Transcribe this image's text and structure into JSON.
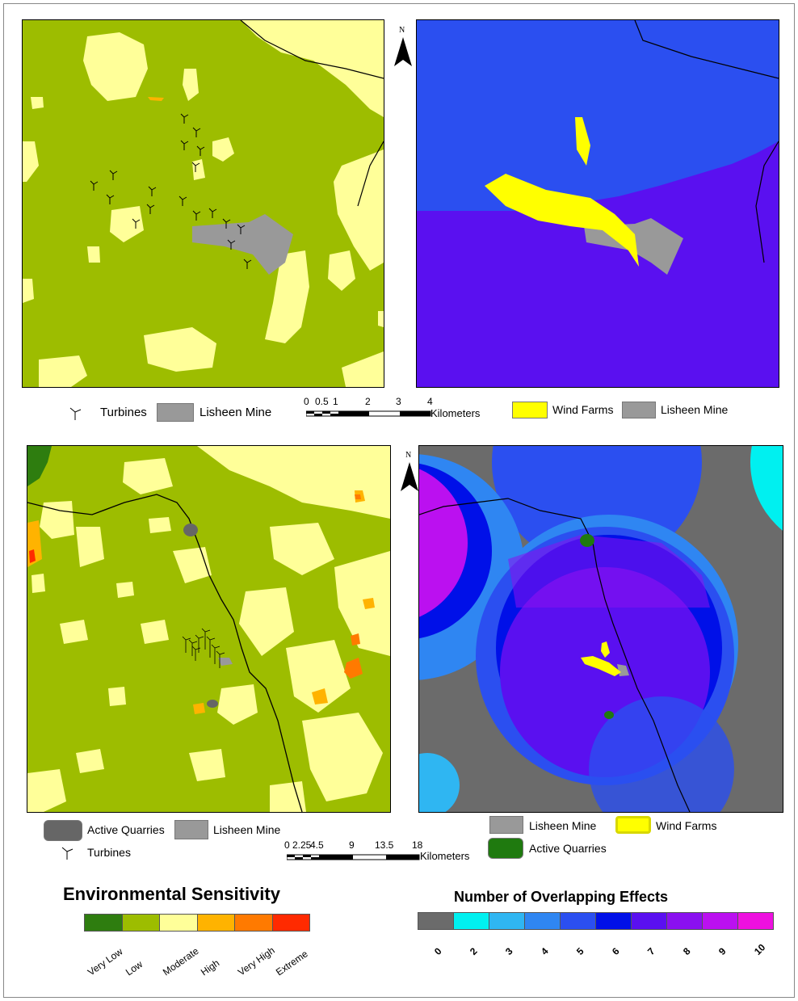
{
  "north_label": "N",
  "scale_top": {
    "ticks": [
      "0",
      "0.5",
      "1",
      "2",
      "3",
      "4"
    ],
    "unit": "Kilometers"
  },
  "scale_bottom": {
    "ticks": [
      "0",
      "2.25",
      "4.5",
      "9",
      "13.5",
      "18"
    ],
    "unit": "Kilometers"
  },
  "legend_top_left": {
    "turbines": "Turbines",
    "lisheen_mine": "Lisheen Mine"
  },
  "legend_top_right": {
    "wind_farms": "Wind Farms",
    "lisheen_mine": "Lisheen Mine"
  },
  "legend_bottom_left": {
    "active_quarries": "Active Quarries",
    "lisheen_mine": "Lisheen Mine",
    "turbines": "Turbines"
  },
  "legend_bottom_right": {
    "lisheen_mine": "Lisheen Mine",
    "wind_farms": "Wind Farms",
    "active_quarries": "Active Quarries"
  },
  "sensitivity_legend": {
    "title": "Environmental Sensitivity",
    "classes": [
      {
        "label": "Very Low",
        "color": "#2e7d0f"
      },
      {
        "label": "Low",
        "color": "#9dbd00"
      },
      {
        "label": "Moderate",
        "color": "#ffff99"
      },
      {
        "label": "High",
        "color": "#ffb300"
      },
      {
        "label": "Very High",
        "color": "#ff7a00"
      },
      {
        "label": "Extreme",
        "color": "#ff2a00"
      }
    ]
  },
  "overlap_legend": {
    "title": "Number of Overlapping Effects",
    "classes": [
      {
        "label": "0",
        "color": "#6b6b6b"
      },
      {
        "label": "2",
        "color": "#00f0f0"
      },
      {
        "label": "3",
        "color": "#2fb6f2"
      },
      {
        "label": "4",
        "color": "#2f86f2"
      },
      {
        "label": "5",
        "color": "#2b4ff0"
      },
      {
        "label": "6",
        "color": "#0010e8"
      },
      {
        "label": "7",
        "color": "#5a10f0"
      },
      {
        "label": "8",
        "color": "#8a10f0"
      },
      {
        "label": "9",
        "color": "#bb10f0"
      },
      {
        "label": "10",
        "color": "#ee10e0"
      }
    ]
  },
  "colors": {
    "low": "#9dbd00",
    "moderate": "#ffff99",
    "mine": "#999999",
    "quarry_grey": "#666666",
    "wind_yellow": "#ffff00",
    "quarry_green": "#1f7a0f"
  }
}
